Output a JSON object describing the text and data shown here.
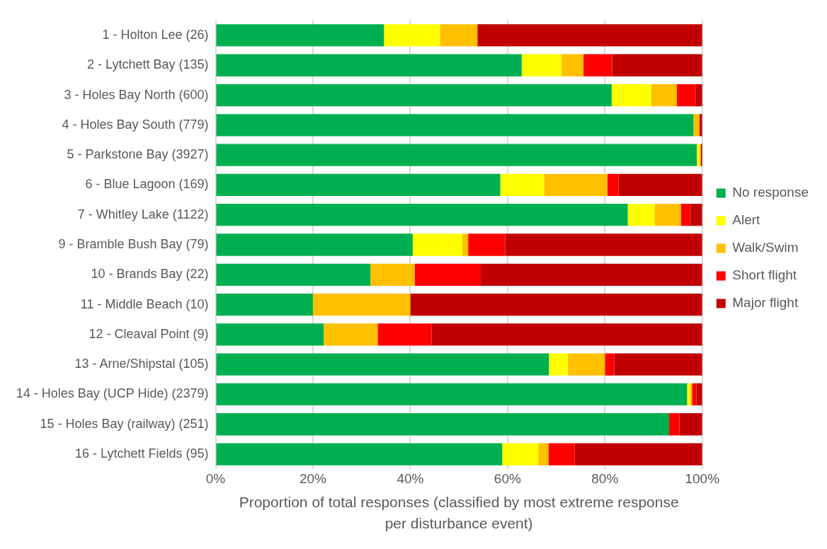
{
  "chart_data": {
    "type": "bar",
    "orientation": "horizontal",
    "stacked": true,
    "xlabel": "Proportion of total responses (classified by most extreme response per disturbance event)",
    "categories": [
      "1 - Holton Lee (26)",
      "2 - Lytchett Bay (135)",
      "3 - Holes Bay North (600)",
      "4 - Holes Bay South (779)",
      "5 - Parkstone Bay (3927)",
      "6 - Blue Lagoon (169)",
      "7 - Whitley Lake (1122)",
      "9 - Bramble Bush Bay (79)",
      "10 - Brands Bay (22)",
      "11 - Middle Beach (10)",
      "12 - Cleaval Point (9)",
      "13 - Arne/Shipstal (105)",
      "14 - Holes Bay (UCP Hide) (2379)",
      "15 - Holes Bay (railway) (251)",
      "16 - Lytchett Fields (95)"
    ],
    "series": [
      {
        "name": "No response",
        "color": "#00b050",
        "values": [
          34.6,
          62.9,
          81.4,
          98.2,
          98.9,
          58.5,
          84.7,
          40.5,
          31.8,
          20,
          22.2,
          68.5,
          96.9,
          93.2,
          58.9
        ]
      },
      {
        "name": "Alert",
        "color": "#ffff00",
        "values": [
          11.5,
          8.2,
          8.1,
          0,
          0.5,
          9,
          5.5,
          10.2,
          0,
          0,
          0,
          3.9,
          0.6,
          0,
          7.4
        ]
      },
      {
        "name": "Walk/Swim",
        "color": "#ffc000",
        "values": [
          7.7,
          4.5,
          5.3,
          1.2,
          0.3,
          13,
          5.4,
          1.2,
          9.1,
          20,
          11.1,
          7.6,
          0.4,
          0,
          2.1
        ]
      },
      {
        "name": "Short flight",
        "color": "#ff0000",
        "values": [
          0,
          5.9,
          3.9,
          0,
          0,
          2.3,
          2,
          7.6,
          13.6,
          0,
          11.1,
          1.9,
          0.9,
          2.1,
          5.4
        ]
      },
      {
        "name": "Major flight",
        "color": "#c00000",
        "values": [
          46.2,
          18.5,
          1.3,
          0.6,
          0.3,
          17.2,
          2.4,
          40.5,
          45.5,
          60,
          55.6,
          18.1,
          1.2,
          4.7,
          26.2
        ]
      }
    ],
    "xlim": [
      0,
      100
    ],
    "xticks": [
      {
        "value": 0,
        "label": "0%"
      },
      {
        "value": 20,
        "label": "20%"
      },
      {
        "value": 40,
        "label": "40%"
      },
      {
        "value": 60,
        "label": "60%"
      },
      {
        "value": 80,
        "label": "80%"
      },
      {
        "value": 100,
        "label": "100%"
      }
    ],
    "grid": "x",
    "legend": "right"
  }
}
